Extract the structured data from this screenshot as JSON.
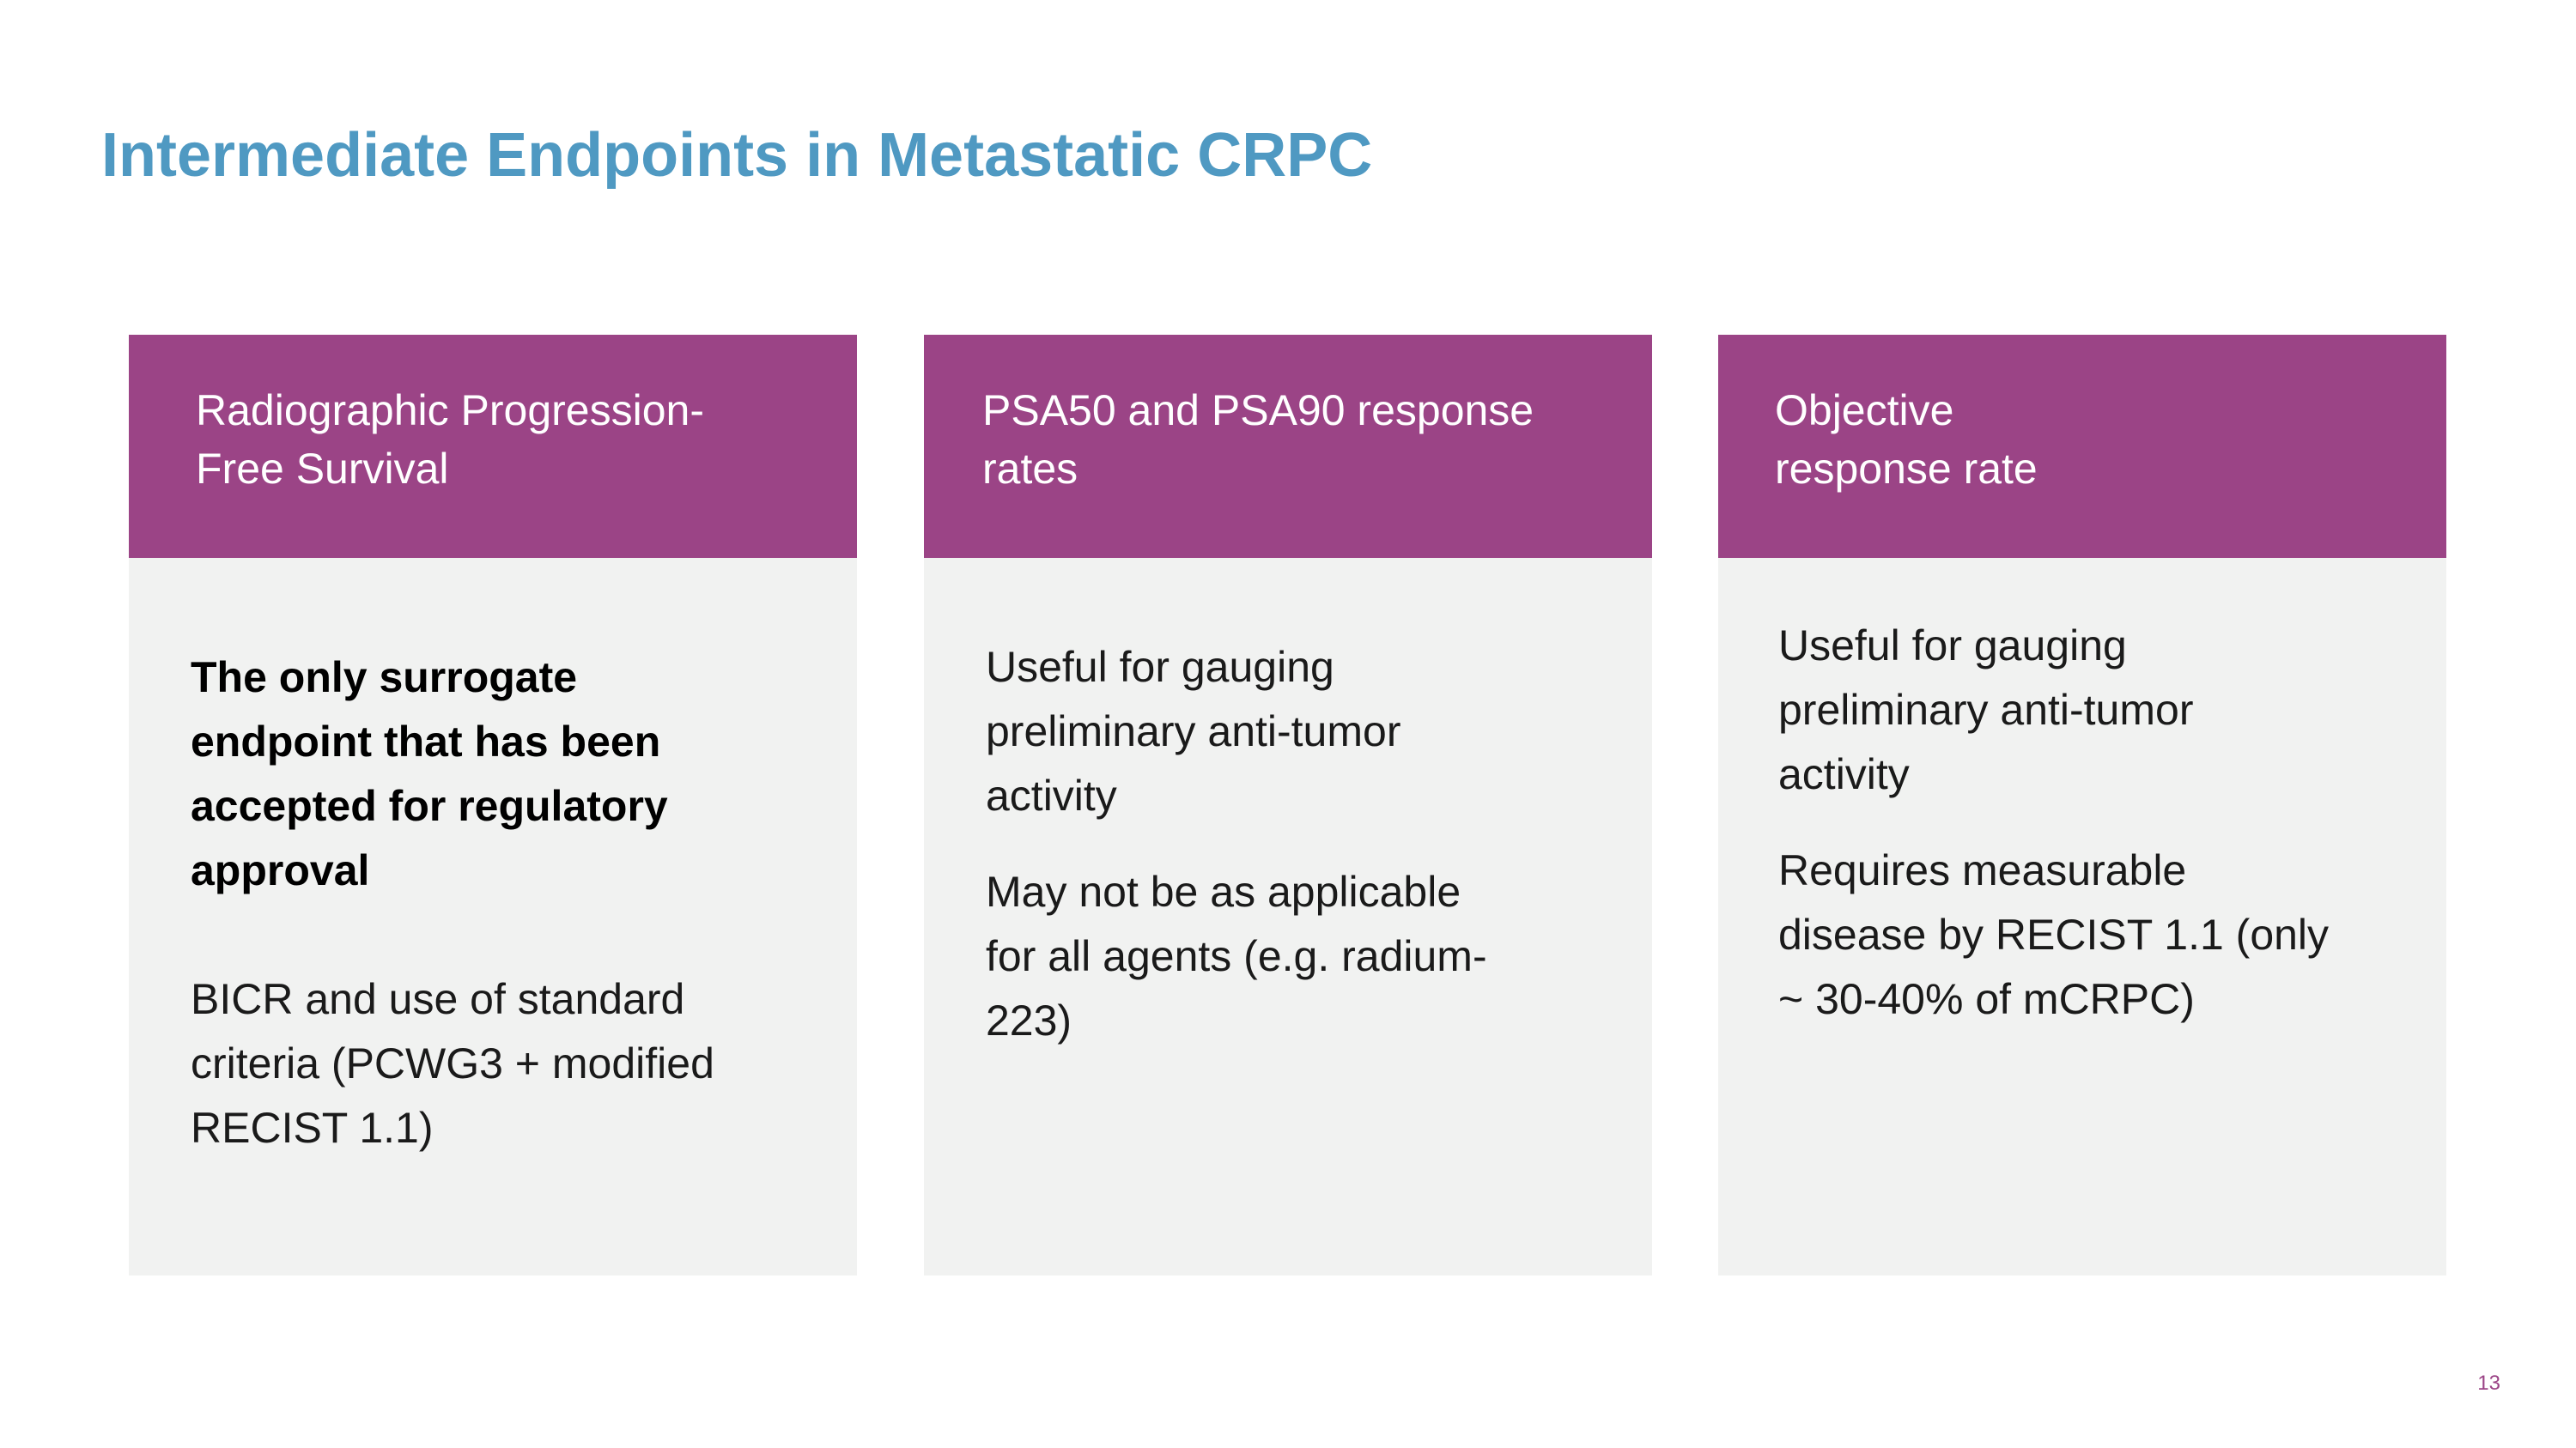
{
  "slide": {
    "title": "Intermediate Endpoints in Metastatic CRPC",
    "page_number": "13"
  },
  "cards": [
    {
      "header": "Radiographic Progression-\nFree Survival",
      "paragraphs": [
        "The only surrogate\nendpoint that has been\naccepted for regulatory\napproval",
        "BICR and use of standard\ncriteria (PCWG3 + modified\nRECIST 1.1)"
      ]
    },
    {
      "header": "PSA50 and PSA90 response\nrates",
      "paragraphs": [
        "Useful for gauging\npreliminary anti-tumor\nactivity",
        "May not be as applicable\nfor all agents (e.g. radium-\n223)"
      ]
    },
    {
      "header": "Objective\nresponse rate",
      "paragraphs": [
        "Useful for gauging\npreliminary anti-tumor\nactivity",
        "Requires measurable\ndisease by RECIST 1.1 (only\n~ 30-40% of mCRPC)"
      ]
    }
  ],
  "colors": {
    "title": "#4f99c2",
    "header_bg": "#9b4486",
    "card_bg": "#f1f2f1",
    "page_number": "#9b4486"
  }
}
